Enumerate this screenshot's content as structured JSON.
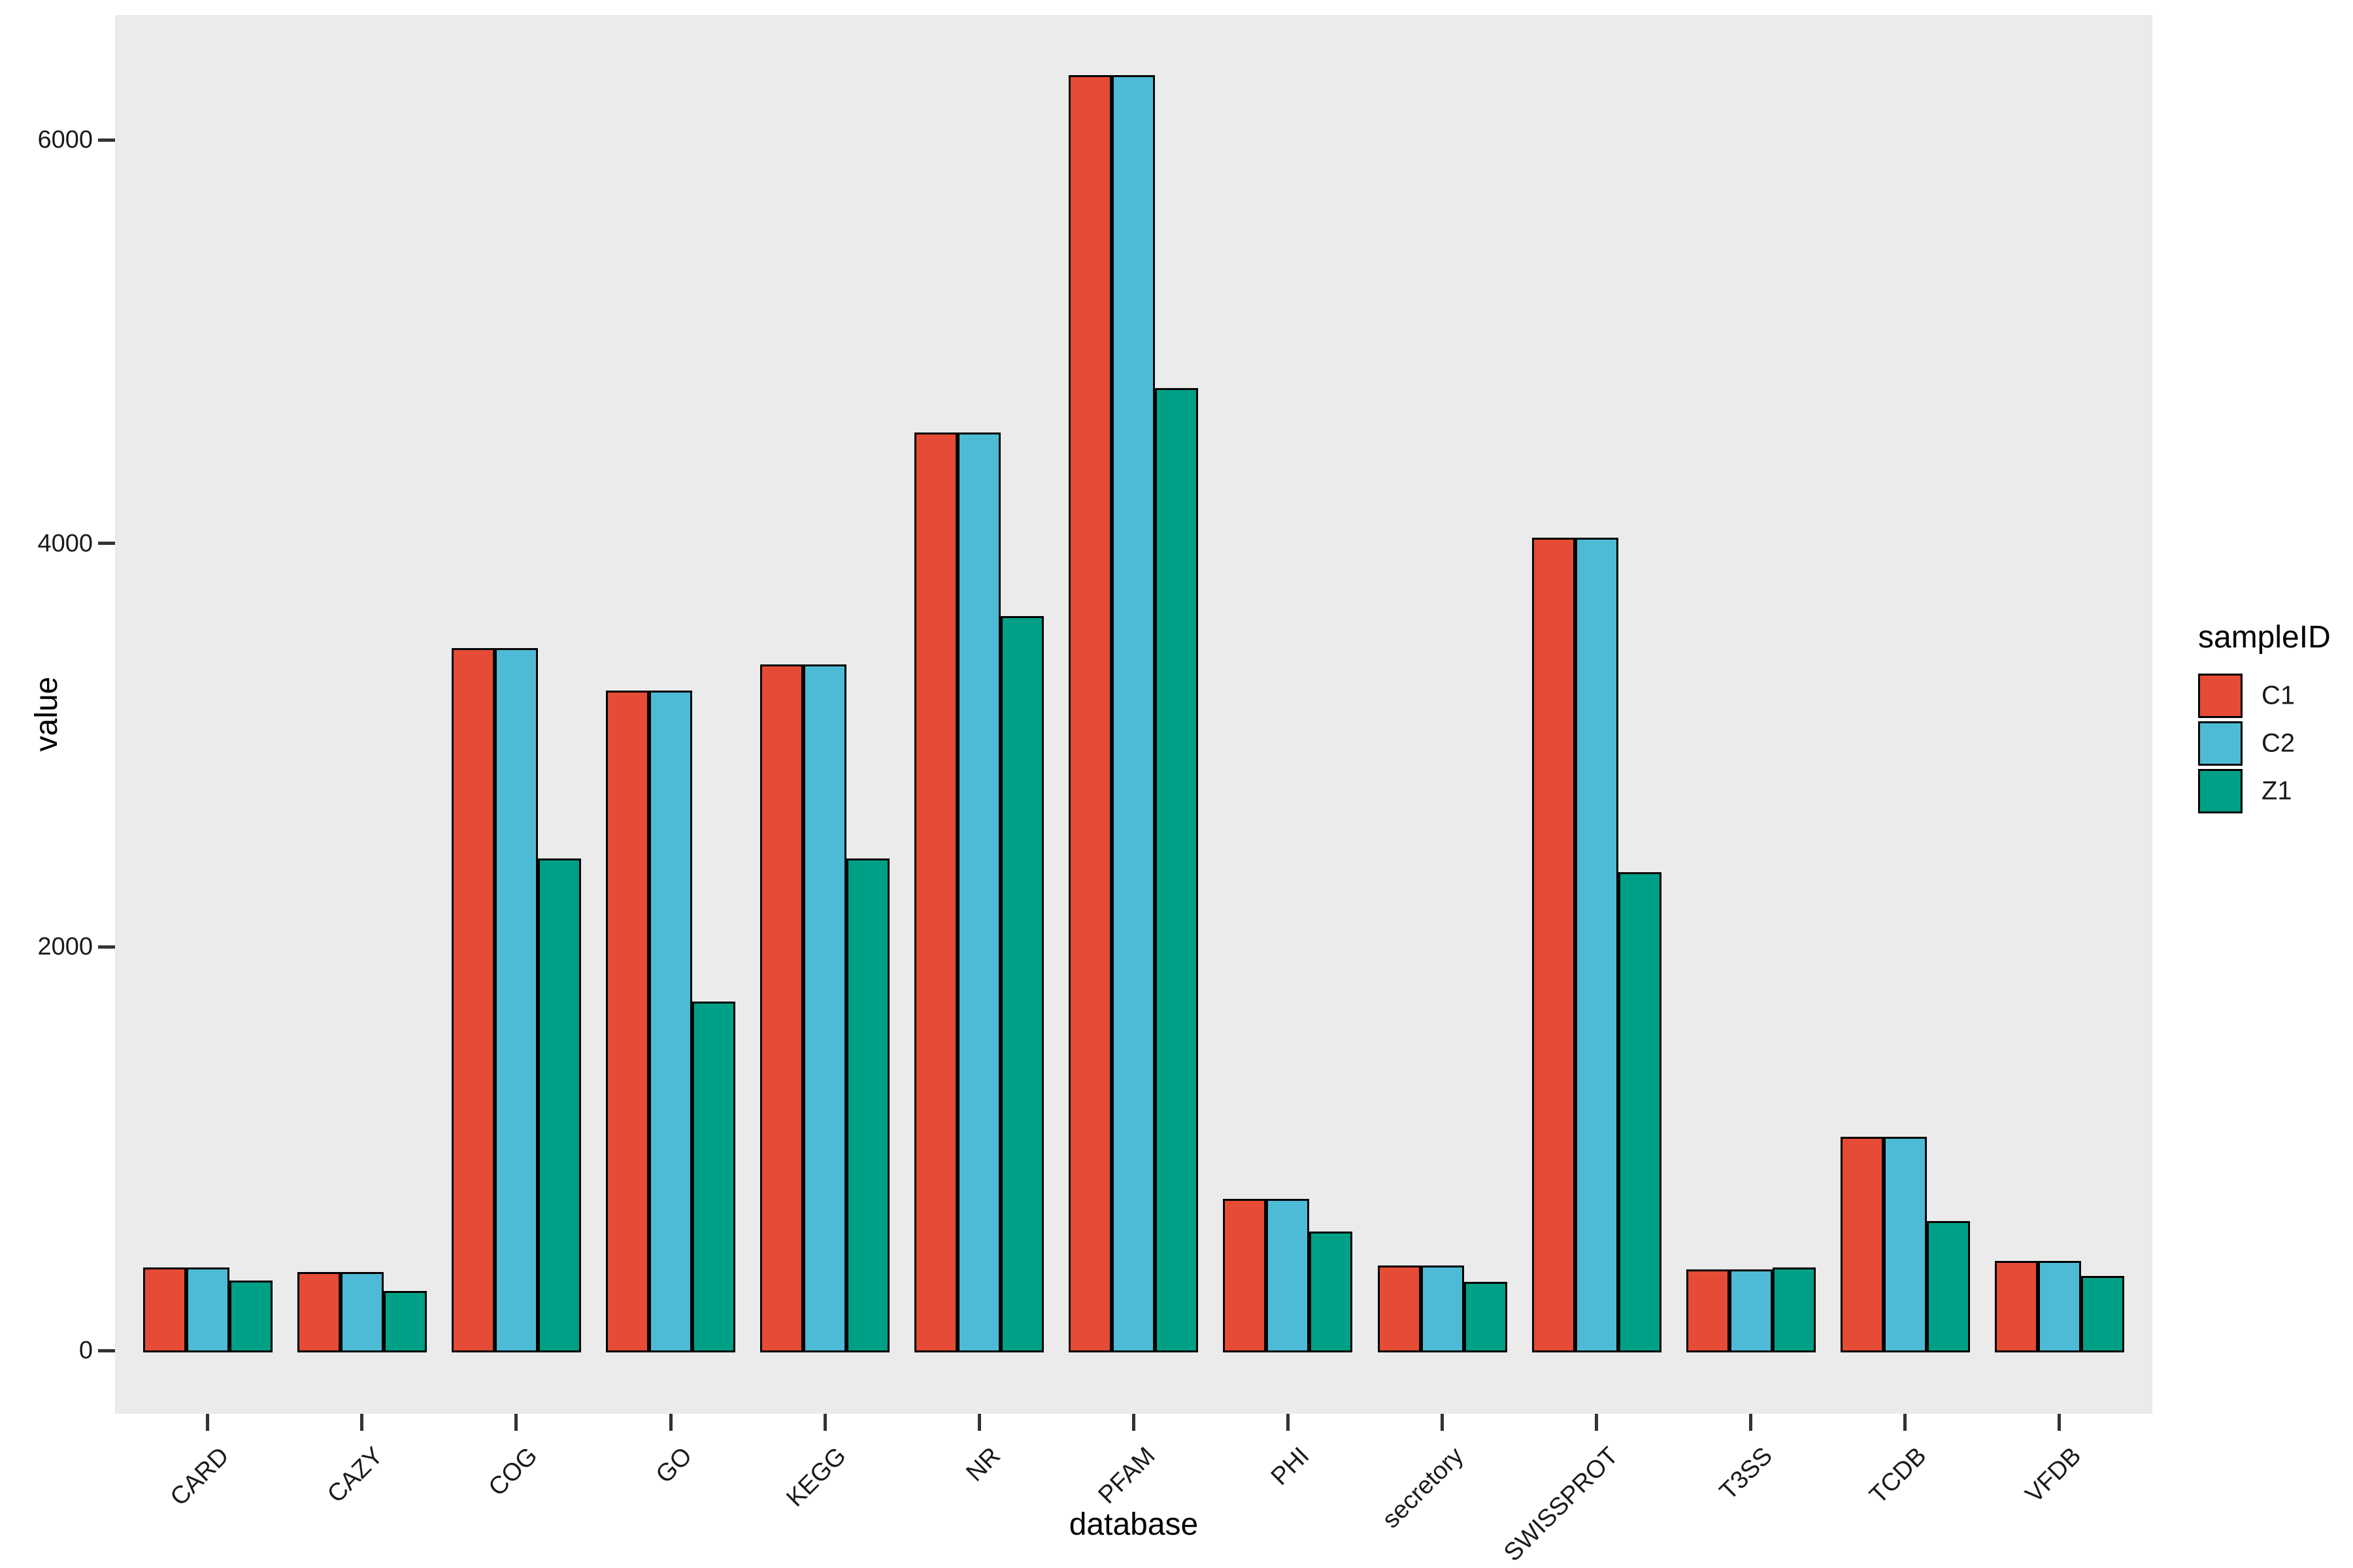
{
  "figure": {
    "y_axis_title": "value",
    "x_axis_title": "database",
    "legend_title": "sampleID"
  },
  "colors": {
    "C1": "#E64B35",
    "C2": "#4DBBD5",
    "Z1": "#00A087",
    "panel_background": "#EBEBEB",
    "bar_border": "#000000",
    "text": "#1A1A1A"
  },
  "chart_data": {
    "type": "bar",
    "title": "",
    "xlabel": "database",
    "ylabel": "value",
    "categories": [
      "CARD",
      "CAZY",
      "COG",
      "GO",
      "KEGG",
      "NR",
      "PFAM",
      "PHI",
      "secretory",
      "SWISSPROT",
      "T3SS",
      "TCDB",
      "VFDB"
    ],
    "series": [
      {
        "name": "C1",
        "color": "#E64B35",
        "values": [
          410,
          390,
          3480,
          3270,
          3400,
          4550,
          6320,
          750,
          420,
          4030,
          400,
          1060,
          445
        ]
      },
      {
        "name": "C2",
        "color": "#4DBBD5",
        "values": [
          410,
          390,
          3480,
          3270,
          3400,
          4550,
          6320,
          750,
          420,
          4030,
          400,
          1060,
          445
        ]
      },
      {
        "name": "Z1",
        "color": "#00A087",
        "values": [
          345,
          295,
          2440,
          1730,
          2440,
          3640,
          4770,
          590,
          340,
          2370,
          410,
          640,
          370
        ]
      }
    ],
    "y_ticks": [
      0,
      2000,
      4000,
      6000
    ],
    "ylim": [
      0,
      6600
    ],
    "grid": false,
    "legend_position": "right",
    "legend_title": "sampleID",
    "x_label_rotation_deg": 45
  }
}
